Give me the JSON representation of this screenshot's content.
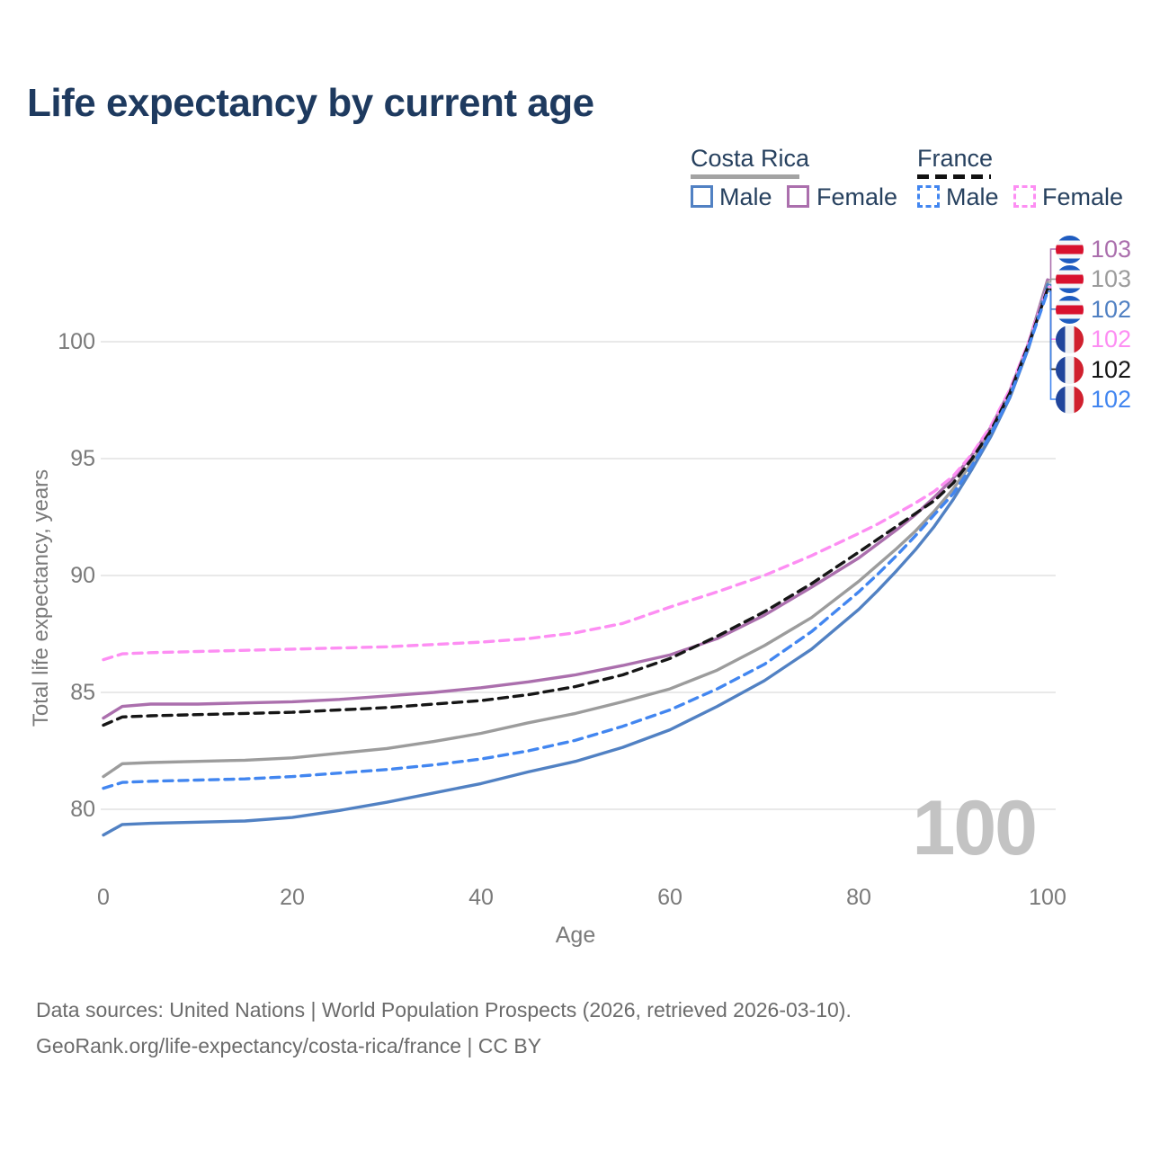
{
  "title": "Life expectancy by current age",
  "legend": {
    "costa_rica": {
      "label": "Costa Rica",
      "male": "Male",
      "female": "Female"
    },
    "france": {
      "label": "France",
      "male": "Male",
      "female": "Female"
    }
  },
  "y_axis": {
    "label": "Total life expectancy, years",
    "ticks": [
      100,
      95,
      90,
      85,
      80
    ]
  },
  "x_axis": {
    "label": "Age",
    "ticks": [
      0,
      20,
      40,
      60,
      80,
      100
    ]
  },
  "watermark_age": "100",
  "footer": {
    "line1": "Data sources: United Nations | World Population Prospects (2026, retrieved 2026-03-10).",
    "line2": "GeoRank.org/life-expectancy/costa-rica/france | CC BY"
  },
  "colors": {
    "title_navy": "#1e3a5f",
    "costa_rica_male": "#5181c3",
    "costa_rica_female": "#ab6fad",
    "costa_rica_all": "#9c9c9c",
    "france_male": "#4286f0",
    "france_female": "#fd8ef3",
    "france_all": "#161616",
    "grid": "#e9e9e9",
    "axis_text": "#7a7a7a",
    "watermark": "#c3c3c3"
  },
  "chart_data": {
    "type": "line",
    "title": "Life expectancy by current age",
    "xlabel": "Age",
    "ylabel": "Total life expectancy, years",
    "xlim": [
      0,
      100
    ],
    "ylim": [
      78,
      103.5
    ],
    "grid": "horizontal",
    "legend_position": "top-right",
    "x": [
      0,
      2,
      5,
      10,
      15,
      20,
      25,
      30,
      35,
      40,
      45,
      50,
      55,
      60,
      65,
      70,
      75,
      80,
      82,
      84,
      86,
      88,
      90,
      92,
      94,
      96,
      98,
      100
    ],
    "series": [
      {
        "id": "costa-rica-female",
        "name": "Costa Rica Female",
        "country": "Costa Rica",
        "sex": "Female",
        "flag": "cr",
        "style": "solid",
        "color": "#ab6fad",
        "end_label": "103",
        "values": [
          83.9,
          84.4,
          84.5,
          84.5,
          84.55,
          84.6,
          84.7,
          84.85,
          85.0,
          85.2,
          85.45,
          85.75,
          86.15,
          86.6,
          87.3,
          88.3,
          89.5,
          90.75,
          91.35,
          91.95,
          92.6,
          93.35,
          94.15,
          95.15,
          96.35,
          97.9,
          99.95,
          102.65
        ]
      },
      {
        "id": "costa-rica-all",
        "name": "Costa Rica",
        "country": "Costa Rica",
        "sex": "All",
        "flag": "cr",
        "style": "solid",
        "color": "#9c9c9c",
        "end_label": "103",
        "values": [
          81.4,
          81.95,
          82.0,
          82.05,
          82.1,
          82.2,
          82.4,
          82.6,
          82.9,
          83.25,
          83.7,
          84.1,
          84.6,
          85.15,
          85.95,
          87.0,
          88.2,
          89.75,
          90.45,
          91.15,
          91.9,
          92.75,
          93.7,
          94.85,
          96.15,
          97.75,
          99.85,
          102.55
        ]
      },
      {
        "id": "costa-rica-male",
        "name": "Costa Rica Male",
        "country": "Costa Rica",
        "sex": "Male",
        "flag": "cr",
        "style": "solid",
        "color": "#5181c3",
        "end_label": "102",
        "values": [
          78.9,
          79.35,
          79.4,
          79.45,
          79.5,
          79.65,
          79.95,
          80.3,
          80.7,
          81.1,
          81.6,
          82.05,
          82.65,
          83.4,
          84.4,
          85.5,
          86.85,
          88.55,
          89.35,
          90.2,
          91.1,
          92.1,
          93.25,
          94.55,
          95.95,
          97.6,
          99.75,
          102.45
        ]
      },
      {
        "id": "france-female",
        "name": "France Female",
        "country": "France",
        "sex": "Female",
        "flag": "fr",
        "style": "dashed",
        "color": "#fd8ef3",
        "end_label": "102",
        "values": [
          86.4,
          86.65,
          86.7,
          86.75,
          86.8,
          86.85,
          86.9,
          86.95,
          87.05,
          87.15,
          87.3,
          87.55,
          87.95,
          88.65,
          89.3,
          90.0,
          90.85,
          91.8,
          92.2,
          92.65,
          93.1,
          93.6,
          94.25,
          95.2,
          96.4,
          97.95,
          100.0,
          102.35
        ]
      },
      {
        "id": "france-all",
        "name": "France",
        "country": "France",
        "sex": "All",
        "flag": "fr",
        "style": "dashed",
        "color": "#161616",
        "end_label": "102",
        "values": [
          83.6,
          83.95,
          84.0,
          84.05,
          84.1,
          84.15,
          84.25,
          84.35,
          84.5,
          84.65,
          84.9,
          85.25,
          85.75,
          86.45,
          87.4,
          88.45,
          89.65,
          91.0,
          91.55,
          92.1,
          92.65,
          93.2,
          93.95,
          95.0,
          96.2,
          97.8,
          99.9,
          102.25
        ]
      },
      {
        "id": "france-male",
        "name": "France Male",
        "country": "France",
        "sex": "Male",
        "flag": "fr",
        "style": "dashed",
        "color": "#4286f0",
        "end_label": "102",
        "values": [
          80.9,
          81.15,
          81.2,
          81.25,
          81.3,
          81.4,
          81.55,
          81.7,
          81.9,
          82.15,
          82.5,
          82.95,
          83.55,
          84.25,
          85.15,
          86.2,
          87.6,
          89.3,
          90.05,
          90.85,
          91.7,
          92.6,
          93.5,
          94.7,
          96.05,
          97.65,
          99.8,
          102.15
        ]
      }
    ]
  }
}
